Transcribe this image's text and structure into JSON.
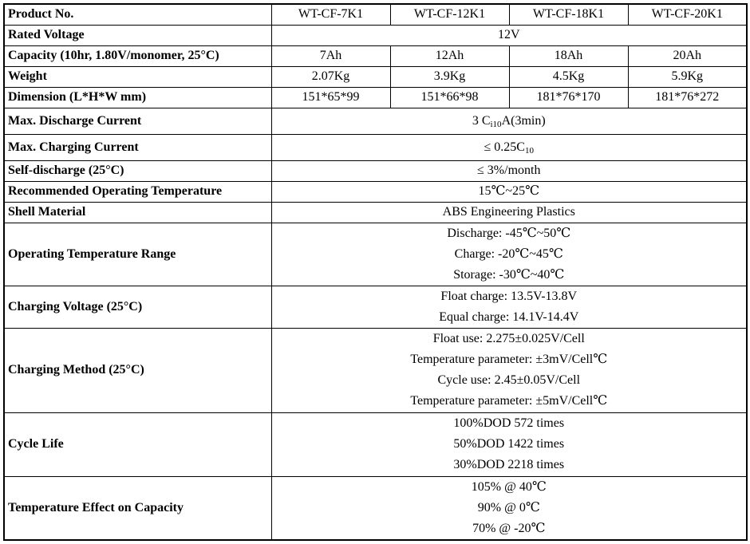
{
  "table": {
    "rows": [
      {
        "label": "Product No.",
        "cells": [
          "WT-CF-7K1",
          "WT-CF-12K1",
          "WT-CF-18K1",
          "WT-CF-20K1"
        ]
      },
      {
        "label": "Rated Voltage",
        "value": "12V"
      },
      {
        "label": "Capacity (10hr, 1.80V/monomer, 25°C)",
        "cells": [
          "7Ah",
          "12Ah",
          "18Ah",
          "20Ah"
        ]
      },
      {
        "label": "Weight",
        "cells": [
          "2.07Kg",
          "3.9Kg",
          "4.5Kg",
          "5.9Kg"
        ]
      },
      {
        "label": "Dimension (L*H*W mm)",
        "cells": [
          "151*65*99",
          "151*66*98",
          "181*76*170",
          "181*76*272"
        ]
      },
      {
        "label": "Max. Discharge Current",
        "value_parts": {
          "pre": "3 C",
          "sub": "i10",
          "post": "A(3min)"
        }
      },
      {
        "label": "Max. Charging Current",
        "value_parts": {
          "pre": "≤ 0.25C",
          "sub": "10",
          "post": ""
        }
      },
      {
        "label": "Self-discharge (25°C)",
        "value": "≤ 3%/month"
      },
      {
        "label": "Recommended Operating Temperature",
        "value": "15℃~25℃"
      },
      {
        "label": "Shell Material",
        "value": "ABS Engineering Plastics"
      },
      {
        "label": "Operating Temperature Range",
        "lines": [
          "Discharge: -45℃~50℃",
          "Charge: -20℃~45℃",
          "Storage: -30℃~40℃"
        ]
      },
      {
        "label": "Charging Voltage (25°C)",
        "lines": [
          "Float charge: 13.5V-13.8V",
          "Equal charge: 14.1V-14.4V"
        ]
      },
      {
        "label": "Charging Method (25°C)",
        "lines": [
          "Float use: 2.275±0.025V/Cell",
          "Temperature parameter: ±3mV/Cell℃",
          "Cycle use: 2.45±0.05V/Cell",
          "Temperature parameter: ±5mV/Cell℃"
        ]
      },
      {
        "label": "Cycle Life",
        "lines": [
          "100%DOD 572 times",
          "50%DOD 1422 times",
          "30%DOD 2218 times"
        ]
      },
      {
        "label": "Temperature Effect on Capacity",
        "lines": [
          "105% @ 40℃",
          "90% @ 0℃",
          "70% @ -20℃"
        ]
      }
    ],
    "colors": {
      "border": "#000000",
      "text": "#000000",
      "background": "#ffffff"
    }
  }
}
